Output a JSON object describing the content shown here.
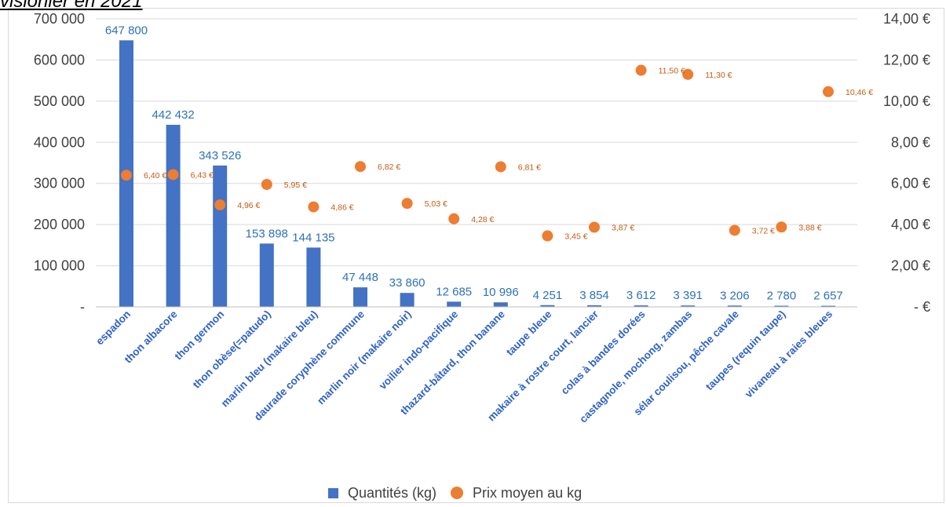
{
  "page": {
    "partial_title": "visionier en 2021"
  },
  "colors": {
    "bars": "#4472c4",
    "points": "#ed7d31",
    "bar_labels": "#2d72b8",
    "price_labels": "#c55a11",
    "grid": "#d9d9d9",
    "category_labels": "#2f62c8"
  },
  "chart_data": {
    "type": "bar",
    "combo": true,
    "legend": {
      "position": "bottom",
      "items": [
        {
          "label": "Quantités (kg)",
          "marker": "square",
          "color": "#4472c4"
        },
        {
          "label": "Prix moyen au kg",
          "marker": "circle",
          "color": "#ed7d31"
        }
      ]
    },
    "categories": [
      "espadon",
      "thon albacore",
      "thon germon",
      "thon obèse(=patudo)",
      "marlin bleu (makaire bleu)",
      "daurade coryphène commune",
      "marlin noir (makaire noir)",
      "voilier indo-pacifique",
      "thazard-bâtard, thon banane",
      "taupe bleue",
      "makaire à rostre court, lancier",
      "colas à bandes dorées",
      "castagnole, mochong, zambas",
      "sélar coulisou, pêche cavale",
      "taupes (requin taupe)",
      "vivaneau à raies bleues"
    ],
    "series": [
      {
        "name": "Quantités (kg)",
        "type": "bar",
        "axis": "left",
        "values": [
          647800,
          442432,
          343526,
          153898,
          144135,
          47448,
          33860,
          12685,
          10996,
          4251,
          3854,
          3612,
          3391,
          3206,
          2780,
          2657
        ],
        "labels": [
          "647 800",
          "442 432",
          "343 526",
          "153 898",
          "144 135",
          "47 448",
          "33 860",
          "12 685",
          "10 996",
          "4 251",
          "3 854",
          "3 612",
          "3 391",
          "3 206",
          "2 780",
          "2 657"
        ]
      },
      {
        "name": "Prix moyen au kg",
        "type": "scatter",
        "axis": "right",
        "values": [
          6.4,
          6.43,
          4.96,
          5.95,
          4.86,
          6.82,
          5.03,
          4.28,
          6.81,
          3.45,
          3.87,
          11.5,
          11.3,
          3.72,
          3.88,
          10.46
        ],
        "labels": [
          "6,40 €",
          "6,43 €",
          "4,96 €",
          "5,95 €",
          "4,86 €",
          "6,82 €",
          "5,03 €",
          "4,28 €",
          "6,81 €",
          "3,45 €",
          "3,87 €",
          "11,50 €",
          "11,30 €",
          "3,72 €",
          "3,88 €",
          "10,46 €"
        ]
      }
    ],
    "left_axis": {
      "min": 0,
      "max": 700000,
      "ticks": [
        {
          "value": 0,
          "label": "-"
        },
        {
          "value": 100000,
          "label": "100 000"
        },
        {
          "value": 200000,
          "label": "200 000"
        },
        {
          "value": 300000,
          "label": "300 000"
        },
        {
          "value": 400000,
          "label": "400 000"
        },
        {
          "value": 500000,
          "label": "500 000"
        },
        {
          "value": 600000,
          "label": "600 000"
        },
        {
          "value": 700000,
          "label": "700 000"
        }
      ]
    },
    "right_axis": {
      "min": 0,
      "max": 14,
      "ticks": [
        {
          "value": 0,
          "label": "- €"
        },
        {
          "value": 2,
          "label": "2,00 €"
        },
        {
          "value": 4,
          "label": "4,00 €"
        },
        {
          "value": 6,
          "label": "6,00 €"
        },
        {
          "value": 8,
          "label": "8,00 €"
        },
        {
          "value": 10,
          "label": "10,00 €"
        },
        {
          "value": 12,
          "label": "12,00 €"
        },
        {
          "value": 14,
          "label": "14,00 €"
        }
      ]
    },
    "grid": true
  }
}
